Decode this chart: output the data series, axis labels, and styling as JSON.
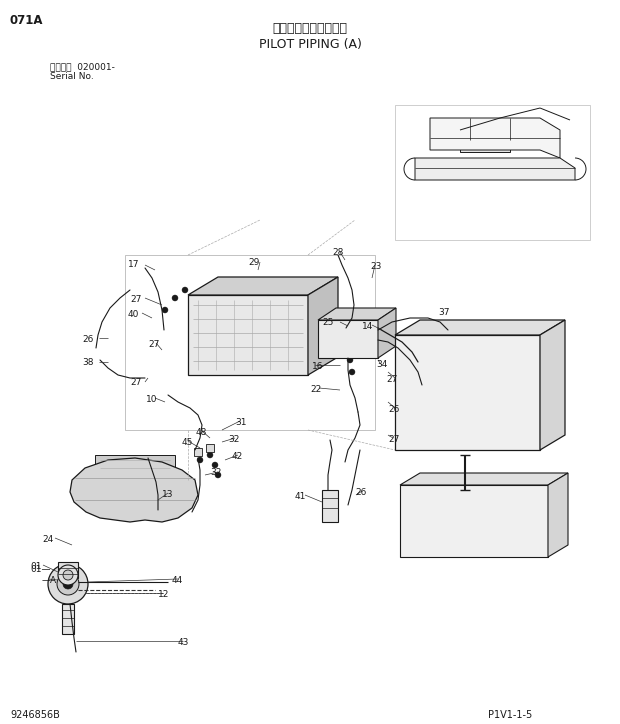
{
  "title_jp": "パイロット配管（Ａ）",
  "title_en": "PILOT PIPING (A)",
  "page_code": "071A",
  "serial_line1": "適用号機  020001-",
  "serial_line2": "Serial No.",
  "bottom_right": "P1V1-1-5",
  "bottom_left": "9246856B",
  "bg_color": "#ffffff",
  "text_color": "#1a1a1a",
  "line_color": "#1a1a1a",
  "gray1": "#cccccc",
  "gray2": "#e8e8e8",
  "gray3": "#aaaaaa",
  "figw": 6.2,
  "figh": 7.24,
  "dpi": 100
}
